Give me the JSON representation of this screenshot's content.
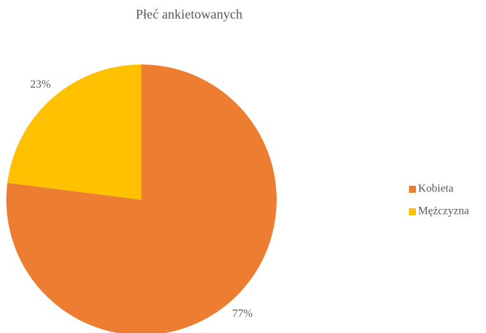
{
  "chart_data": {
    "type": "pie",
    "title": "Płeć ankietowanych",
    "categories": [
      "Kobieta",
      "Mężczyzna"
    ],
    "values": [
      77,
      23
    ],
    "value_labels": [
      "77%",
      "23%"
    ],
    "colors": [
      "#ED7D31",
      "#FFC000"
    ],
    "legend": "right"
  }
}
